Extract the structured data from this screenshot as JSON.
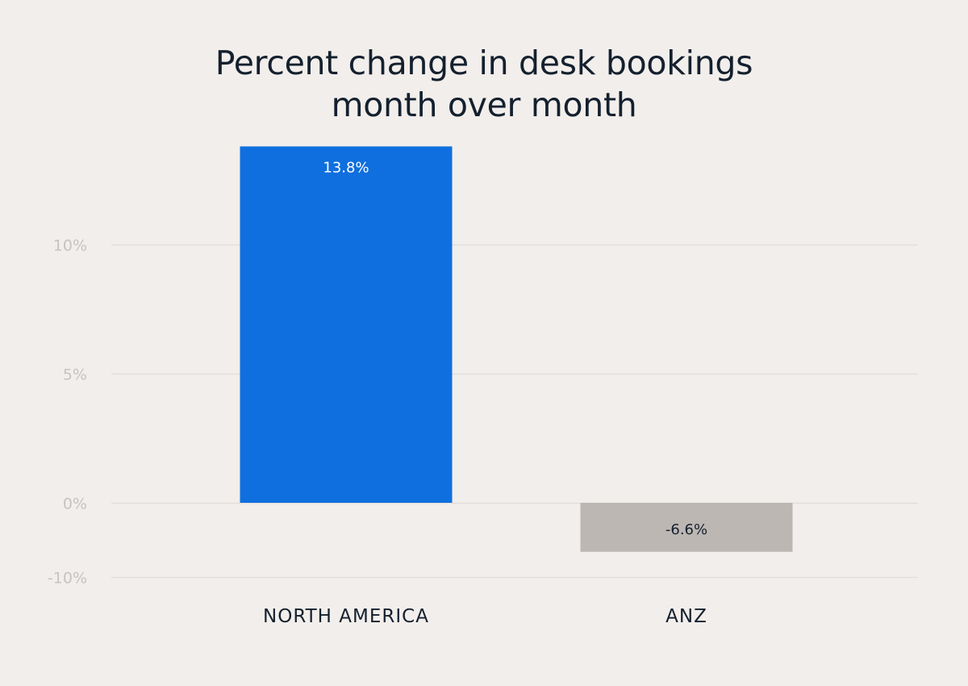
{
  "chart_data": {
    "type": "bar",
    "title_lines": [
      "Percent change in desk bookings",
      "month over month"
    ],
    "categories": [
      "NORTH AMERICA",
      "ANZ"
    ],
    "values": [
      13.8,
      -6.6
    ],
    "data_labels": [
      "13.8%",
      "-6.6%"
    ],
    "yticks": [
      {
        "value": 10,
        "label": "10%"
      },
      {
        "value": 5,
        "label": "5%"
      },
      {
        "value": 0,
        "label": "0%"
      },
      {
        "value": -10,
        "label": "-10%"
      }
    ],
    "xlabel": "",
    "ylabel": "",
    "grid": true,
    "colors": {
      "bar_positive": "#0f6fde",
      "bar_negative": "#bcb7b3",
      "label_on_positive": "#ffffff",
      "label_on_negative": "#14202e",
      "gridline": "#e2dedb",
      "tick_text": "#c7c3c0",
      "category_text": "#14202e"
    }
  }
}
